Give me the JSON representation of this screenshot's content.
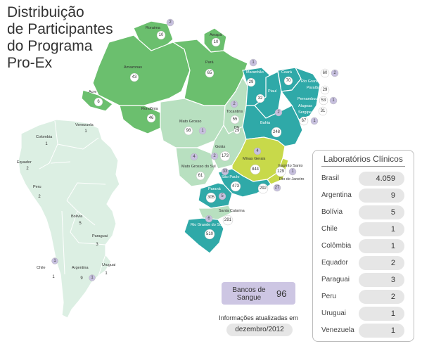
{
  "title": {
    "line1": "Distribuição",
    "line2": "de Participantes",
    "line3": "do Programa",
    "line4": "Pro-Ex"
  },
  "colors": {
    "north": "#6bbf6e",
    "northeast": "#2fa9a8",
    "center_west": "#b8e0c0",
    "southeast_mg": "#c8d94a",
    "southeast_sp": "#2fa9a8",
    "south_parana": "#2fa9a8",
    "south_sc": "#b8e0c0",
    "south_rs": "#2fa9a8",
    "south_america": "#dcefe3",
    "purple_badge": "#c7c0df",
    "white_badge": "#ffffff"
  },
  "brazil_states": [
    {
      "name": "Roraima",
      "labs": "10",
      "bancos": "2"
    },
    {
      "name": "Amapá",
      "labs": "10"
    },
    {
      "name": "Amazonas",
      "labs": "43"
    },
    {
      "name": "Pará",
      "labs": "65"
    },
    {
      "name": "Acre",
      "labs": "6"
    },
    {
      "name": "Rondônia",
      "labs": "46"
    },
    {
      "name": "Mato Grosso",
      "labs": "98",
      "bancos": "1"
    },
    {
      "name": "Tocantins",
      "labs": "55",
      "bancos": "2"
    },
    {
      "name": "Maranhão",
      "labs": "29",
      "bancos": "1"
    },
    {
      "name": "Piauí",
      "labs": "32"
    },
    {
      "name": "Ceará",
      "labs": "70",
      "bancos": "2"
    },
    {
      "name": "Rio Grande do Norte",
      "labs": "60",
      "bancos": "2"
    },
    {
      "name": "Paraíba",
      "labs": "29"
    },
    {
      "name": "Pernambuco",
      "labs": "53",
      "bancos": "1"
    },
    {
      "name": "Alagoas",
      "labs": "31"
    },
    {
      "name": "Sergipe",
      "labs": "67",
      "bancos": "1"
    },
    {
      "name": "Bahia",
      "labs": "248",
      "bancos": "2"
    },
    {
      "name": "DF",
      "labs": "29"
    },
    {
      "name": "Goiás",
      "labs": "173",
      "bancos": "2"
    },
    {
      "name": "Mato Grosso do Sul",
      "labs": "61",
      "bancos": "4"
    },
    {
      "name": "Minas Gerais",
      "labs": "844",
      "bancos": "4"
    },
    {
      "name": "Espírito Santo",
      "labs": "129",
      "bancos": "1"
    },
    {
      "name": "Rio de Janeiro",
      "labs": "292",
      "bancos": "27"
    },
    {
      "name": "São Paulo",
      "labs": "473",
      "bancos": "33"
    },
    {
      "name": "Paraná",
      "labs": "305",
      "bancos": "5"
    },
    {
      "name": "Santa Catarina",
      "labs": "291"
    },
    {
      "name": "Rio Grande do Sul",
      "labs": "510",
      "bancos": "6"
    }
  ],
  "other_countries": [
    {
      "name": "Venezuela",
      "labs": "1"
    },
    {
      "name": "Colombia",
      "labs": "1"
    },
    {
      "name": "Equador",
      "labs": "2"
    },
    {
      "name": "Peru",
      "labs": "2"
    },
    {
      "name": "Bolivia",
      "labs": "5"
    },
    {
      "name": "Paraguai",
      "labs": "3"
    },
    {
      "name": "Chile",
      "labs": "1",
      "bancos": "1"
    },
    {
      "name": "Argentina",
      "labs": "9",
      "bancos": "1"
    },
    {
      "name": "Uruguai",
      "labs": "1"
    }
  ],
  "bancos": {
    "label": "Bancos de Sangue",
    "value": "96"
  },
  "info": {
    "label": "Informações atualizadas em",
    "date": "dezembro/2012"
  },
  "laboratorios": {
    "title": "Laboratórios Clínicos",
    "rows": [
      {
        "country": "Brasil",
        "count": "4.059"
      },
      {
        "country": "Argentina",
        "count": "9"
      },
      {
        "country": "Bolívia",
        "count": "5"
      },
      {
        "country": "Chile",
        "count": "1"
      },
      {
        "country": "Colômbia",
        "count": "1"
      },
      {
        "country": "Equador",
        "count": "2"
      },
      {
        "country": "Paraguai",
        "count": "3"
      },
      {
        "country": "Peru",
        "count": "2"
      },
      {
        "country": "Uruguai",
        "count": "1"
      },
      {
        "country": "Venezuela",
        "count": "1"
      }
    ]
  }
}
